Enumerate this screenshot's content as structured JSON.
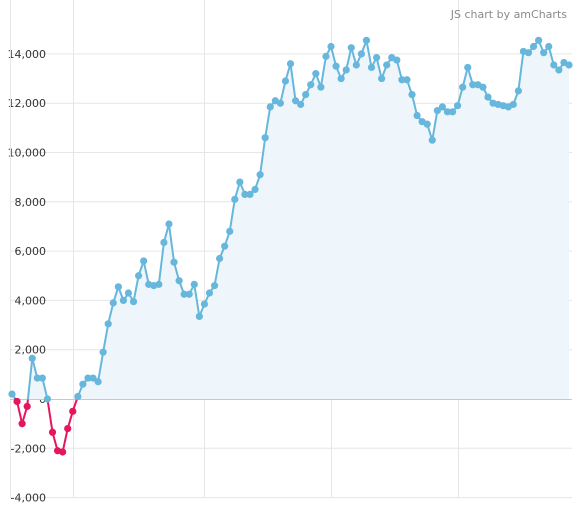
{
  "credit": "JS chart by amCharts",
  "colors": {
    "line_positive": "#67b7dc",
    "line_negative": "#e5155f",
    "fill_positive": "#eef6fb",
    "grid": "#e6e6e6",
    "axis": "#999999",
    "baseline": "#c8c8c8",
    "label": "#333333"
  },
  "chart_data": {
    "type": "line",
    "title": "",
    "xlabel": "",
    "ylabel": "",
    "ylim": [
      -4000,
      15500
    ],
    "y_ticks": [
      {
        "value": -4000,
        "label": "-4,000"
      },
      {
        "value": -2000,
        "label": "-2,000"
      },
      {
        "value": 0,
        "label": "0"
      },
      {
        "value": 2000,
        "label": "2,000"
      },
      {
        "value": 4000,
        "label": "4,000"
      },
      {
        "value": 6000,
        "label": "6,000"
      },
      {
        "value": 8000,
        "label": "8,000"
      },
      {
        "value": 10000,
        "label": "10,000"
      },
      {
        "value": 12000,
        "label": "12,000"
      },
      {
        "value": 14000,
        "label": "14,000"
      }
    ],
    "x_grid_indices": [
      12,
      38,
      63,
      88
    ],
    "grid": true,
    "negative_below": 0,
    "series": [
      {
        "values": [
          200,
          -100,
          -1000,
          -300,
          1650,
          850,
          850,
          0,
          -1350,
          -2100,
          -2150,
          -1200,
          -500,
          100,
          600,
          850,
          850,
          700,
          1900,
          3050,
          3900,
          4550,
          4000,
          4300,
          3950,
          5000,
          5600,
          4650,
          4600,
          4650,
          6350,
          7100,
          5550,
          4800,
          4250,
          4250,
          4650,
          3350,
          3850,
          4300,
          4600,
          5700,
          6200,
          6800,
          8100,
          8800,
          8300,
          8300,
          8500,
          9100,
          10600,
          11850,
          12100,
          12000,
          12900,
          13600,
          12100,
          11950,
          12350,
          12750,
          13200,
          12650,
          13900,
          14300,
          13500,
          13000,
          13350,
          14250,
          13550,
          14000,
          14550,
          13450,
          13850,
          13000,
          13550,
          13850,
          13750,
          12950,
          12950,
          12350,
          11500,
          11250,
          11150,
          10500,
          11700,
          11850,
          11650,
          11650,
          11900,
          12650,
          13450,
          12750,
          12750,
          12650,
          12250,
          12000,
          11950,
          11900,
          11850,
          11950,
          12500,
          14100,
          14050,
          14300,
          14550,
          14050,
          14300,
          13550,
          13350,
          13650,
          13550
        ]
      }
    ]
  }
}
